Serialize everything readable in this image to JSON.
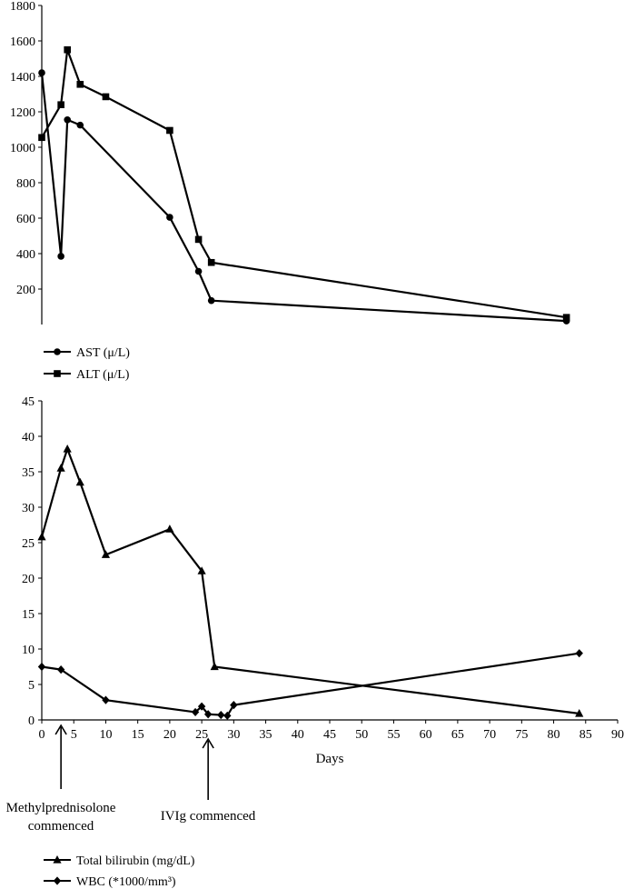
{
  "chart_data": [
    {
      "type": "line",
      "title": "",
      "xlabel": "",
      "ylabel": "",
      "ylim": [
        0,
        1800
      ],
      "yticks": [
        200,
        400,
        600,
        800,
        1000,
        1200,
        1400,
        1600,
        1800
      ],
      "grid": false,
      "legend_position": "bottom-left",
      "series": [
        {
          "name": "AST (μ/L)",
          "marker": "circle",
          "x": [
            0,
            3,
            4,
            6,
            20,
            24.5,
            26.5,
            82
          ],
          "values": [
            1420,
            385,
            1155,
            1125,
            605,
            300,
            135,
            20
          ]
        },
        {
          "name": "ALT (μ/L)",
          "marker": "square",
          "x": [
            0,
            3,
            4,
            6,
            10,
            20,
            24.5,
            26.5,
            82
          ],
          "values": [
            1055,
            1240,
            1550,
            1355,
            1285,
            1095,
            480,
            350,
            40
          ]
        }
      ]
    },
    {
      "type": "line",
      "title": "",
      "xlabel": "Days",
      "ylabel": "",
      "xlim": [
        0,
        90
      ],
      "ylim": [
        0,
        45
      ],
      "xticks": [
        0,
        5,
        10,
        15,
        20,
        25,
        30,
        35,
        40,
        45,
        50,
        55,
        60,
        65,
        70,
        75,
        80,
        85,
        90
      ],
      "yticks": [
        0,
        5,
        10,
        15,
        20,
        25,
        30,
        35,
        40,
        45
      ],
      "grid": false,
      "legend_position": "bottom-left",
      "series": [
        {
          "name": "Total bilirubin (mg/dL)",
          "marker": "triangle",
          "x": [
            0,
            3,
            4,
            6,
            10,
            20,
            25,
            27,
            84
          ],
          "values": [
            25.8,
            35.5,
            38.2,
            33.5,
            23.3,
            26.9,
            21,
            7.5,
            0.9
          ]
        },
        {
          "name": "WBC (*1000/mm³)",
          "marker": "diamond",
          "x": [
            0,
            3,
            10,
            24,
            25,
            26,
            28,
            29,
            30,
            84
          ],
          "values": [
            7.5,
            7.1,
            2.8,
            1.1,
            1.9,
            0.8,
            0.7,
            0.6,
            2.1,
            9.4
          ]
        }
      ],
      "annotations": [
        {
          "text": "Methylprednisolone commenced",
          "day": 3
        },
        {
          "text": "IVIg commenced",
          "day": 26
        }
      ]
    }
  ]
}
